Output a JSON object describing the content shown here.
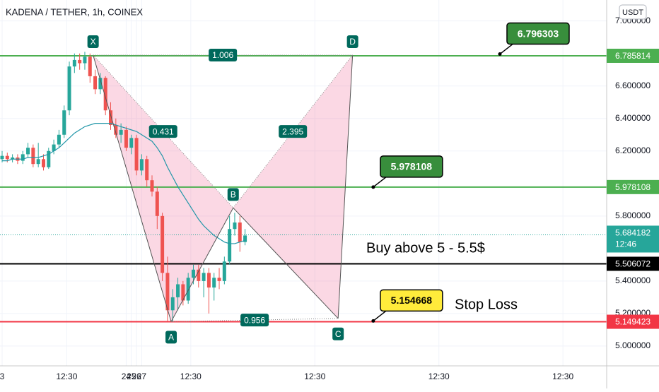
{
  "chart_data": {
    "type": "candlestick",
    "title": "KADENA / TETHER, 1h, COINEX",
    "currency": "USDT",
    "up_color": "#26a69a",
    "down_color": "#ef5350",
    "x": [
      0,
      1,
      2,
      3,
      4,
      5,
      6,
      7,
      8,
      9,
      10,
      11,
      12,
      13,
      14,
      15,
      16,
      17,
      18,
      19,
      20,
      21,
      22,
      23,
      24,
      25,
      26,
      27,
      28,
      29,
      30,
      31,
      32,
      33,
      34,
      35,
      36,
      37,
      38,
      39,
      40,
      41,
      42,
      43,
      44,
      45,
      46,
      47
    ],
    "open": [
      6.15,
      6.17,
      6.15,
      6.16,
      6.14,
      6.18,
      6.22,
      6.12,
      6.15,
      6.1,
      6.2,
      6.24,
      6.3,
      6.45,
      6.72,
      6.76,
      6.74,
      6.78,
      6.66,
      6.58,
      6.65,
      6.45,
      6.36,
      6.3,
      6.33,
      6.22,
      6.28,
      6.08,
      6.15,
      6.02,
      5.95,
      5.8,
      5.45,
      5.22,
      5.3,
      5.38,
      5.28,
      5.42,
      5.47,
      5.4,
      5.45,
      5.36,
      5.42,
      5.4,
      5.52,
      5.72,
      5.76,
      5.64
    ],
    "high": [
      6.2,
      6.19,
      6.18,
      6.18,
      6.2,
      6.25,
      6.24,
      6.25,
      6.18,
      6.22,
      6.27,
      6.33,
      6.48,
      6.75,
      6.8,
      6.8,
      6.81,
      6.8,
      6.7,
      6.68,
      6.66,
      6.5,
      6.4,
      6.37,
      6.35,
      6.3,
      6.3,
      6.18,
      6.17,
      6.05,
      5.98,
      5.82,
      5.55,
      5.35,
      5.42,
      5.4,
      5.45,
      5.5,
      5.5,
      5.48,
      5.48,
      5.45,
      5.48,
      5.55,
      5.8,
      5.82,
      5.8,
      5.72
    ],
    "low": [
      6.13,
      6.13,
      6.13,
      6.12,
      6.12,
      6.16,
      6.1,
      6.1,
      6.08,
      6.09,
      6.18,
      6.22,
      6.28,
      6.42,
      6.68,
      6.7,
      6.7,
      6.62,
      6.55,
      6.55,
      6.42,
      6.33,
      6.28,
      6.25,
      6.2,
      6.18,
      6.05,
      6.05,
      5.98,
      5.92,
      5.72,
      5.4,
      5.15,
      5.15,
      5.22,
      5.25,
      5.26,
      5.38,
      5.36,
      5.3,
      5.2,
      5.28,
      5.35,
      5.38,
      5.5,
      5.68,
      5.58,
      5.62
    ],
    "close": [
      6.17,
      6.15,
      6.16,
      6.14,
      6.18,
      6.22,
      6.12,
      6.15,
      6.1,
      6.2,
      6.24,
      6.3,
      6.45,
      6.72,
      6.76,
      6.74,
      6.78,
      6.66,
      6.58,
      6.65,
      6.45,
      6.36,
      6.3,
      6.33,
      6.22,
      6.28,
      6.08,
      6.15,
      6.02,
      5.95,
      5.8,
      5.45,
      5.22,
      5.3,
      5.38,
      5.28,
      5.42,
      5.47,
      5.4,
      5.45,
      5.36,
      5.42,
      5.4,
      5.52,
      5.72,
      5.76,
      5.64,
      5.68
    ],
    "ma": {
      "color": "#2196a8",
      "values": [
        6.14,
        6.14,
        6.15,
        6.15,
        6.15,
        6.16,
        6.16,
        6.16,
        6.17,
        6.18,
        6.2,
        6.22,
        6.25,
        6.28,
        6.31,
        6.33,
        6.35,
        6.36,
        6.37,
        6.37,
        6.37,
        6.37,
        6.36,
        6.35,
        6.34,
        6.33,
        6.32,
        6.3,
        6.28,
        6.26,
        6.22,
        6.17,
        6.1,
        6.04,
        5.98,
        5.93,
        5.88,
        5.83,
        5.78,
        5.74,
        5.71,
        5.68,
        5.66,
        5.64,
        5.63,
        5.63,
        5.64,
        5.65
      ]
    },
    "xlim": [
      -0.41,
      116.96
    ],
    "ylim": [
      4.878,
      7.129
    ],
    "xticks": [
      {
        "value": 0,
        "label": "3"
      },
      {
        "value": 12.5,
        "label": "12:30"
      },
      24,
      {
        "value": 36.5,
        "label": "12:30"
      },
      25,
      {
        "value": 60.5,
        "label": "12:30"
      },
      26,
      {
        "value": 84.5,
        "label": "12:30"
      },
      27,
      {
        "value": 108.5,
        "label": "12:30"
      }
    ],
    "yticks": [
      {
        "value": 7.0,
        "label": "7.000000"
      },
      {
        "value": 6.6,
        "label": "6.600000"
      },
      {
        "value": 6.4,
        "label": "6.400000"
      },
      {
        "value": 6.2,
        "label": "6.200000"
      },
      {
        "value": 5.8,
        "label": "5.800000"
      },
      {
        "value": 5.4,
        "label": "5.400000"
      },
      {
        "value": 5.2,
        "label": "5.200000"
      },
      {
        "value": 5.0,
        "label": "5.000000"
      }
    ],
    "levels": [
      {
        "value": 6.785814,
        "color": "#4caf50"
      },
      {
        "value": 5.978108,
        "color": "#4caf50"
      },
      {
        "value": 5.506072,
        "color": "#000000"
      },
      {
        "value": 5.149423,
        "color": "#f23645"
      }
    ],
    "current": {
      "value": 5.684182,
      "countdown": "12:46",
      "color": "#26a69a"
    },
    "callouts": [
      {
        "value": 6.796303,
        "x": 96.3,
        "color": "#388e3c",
        "text_color": "#ffffff"
      },
      {
        "value": 5.978108,
        "x": 71.8,
        "color": "#388e3c",
        "text_color": "#ffffff"
      },
      {
        "value": 5.154668,
        "x": 71.8,
        "color": "#ffeb3b",
        "text_color": "#000000"
      }
    ],
    "annotations": [
      "Buy above 5 - 5.5$",
      "Stop Loss"
    ],
    "pattern": {
      "points": [
        {
          "label": "X",
          "x": 17.6,
          "y": 6.79
        },
        {
          "label": "A",
          "x": 32.7,
          "y": 5.15
        },
        {
          "label": "B",
          "x": 44.7,
          "y": 5.85
        },
        {
          "label": "C",
          "x": 65.0,
          "y": 5.17
        },
        {
          "label": "D",
          "x": 67.8,
          "y": 6.79
        }
      ],
      "ratios": [
        1.006,
        0.431,
        2.395,
        0.956
      ]
    }
  }
}
